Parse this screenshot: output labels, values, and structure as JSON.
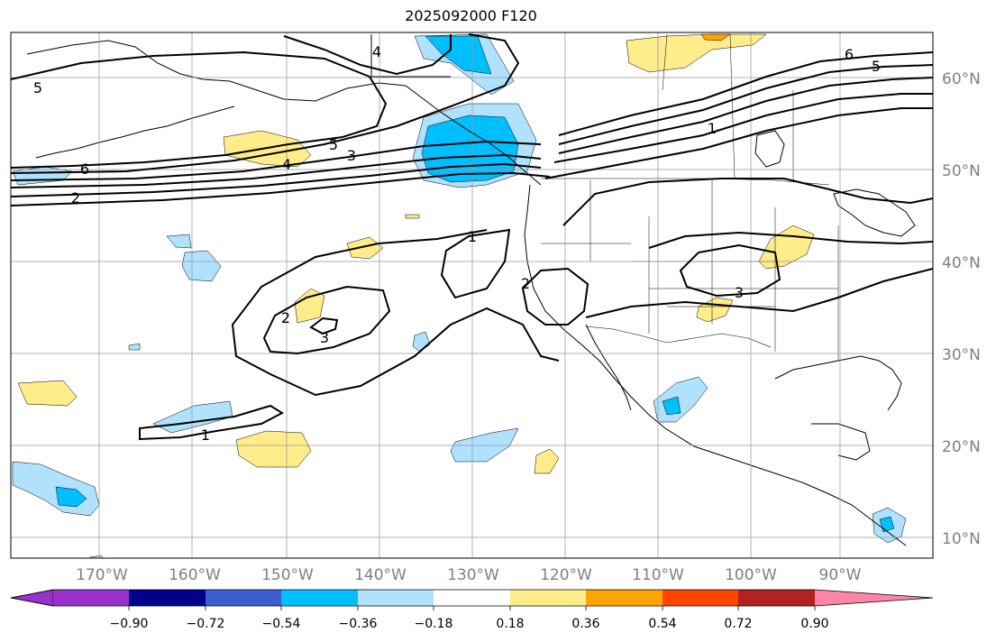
{
  "title": "2025092000 F120",
  "map": {
    "lon_labels": [
      "170°W",
      "160°W",
      "150°W",
      "140°W",
      "130°W",
      "120°W",
      "110°W",
      "100°W",
      "90°W"
    ],
    "lat_labels": [
      "60°N",
      "50°N",
      "40°N",
      "30°N",
      "20°N",
      "10°N"
    ],
    "contour_labels": [
      {
        "text": "5"
      },
      {
        "text": "6"
      },
      {
        "text": "2"
      },
      {
        "text": "4"
      },
      {
        "text": "5"
      },
      {
        "text": "3"
      },
      {
        "text": "4"
      },
      {
        "text": "6"
      },
      {
        "text": "5"
      },
      {
        "text": "1"
      },
      {
        "text": "1"
      },
      {
        "text": "2"
      },
      {
        "text": "3"
      },
      {
        "text": "2"
      },
      {
        "text": "3"
      },
      {
        "text": "1"
      }
    ]
  },
  "colorbar": {
    "tick_labels": [
      "−0.90",
      "−0.72",
      "−0.54",
      "−0.36",
      "−0.18",
      "0.18",
      "0.36",
      "0.54",
      "0.72",
      "0.90"
    ],
    "colors": [
      "#9932cc",
      "#00008b",
      "#3a5fcd",
      "#00bfff",
      "#b0e2ff",
      "#ffffff",
      "#ffec8b",
      "#ffa500",
      "#ff4500",
      "#b22222",
      "#ff85a8"
    ]
  },
  "colors": {
    "light_blue": "#b0e2ff",
    "blue": "#00bfff",
    "yellow": "#ffec8b",
    "orange": "#ffa500",
    "grid": "#999999",
    "label_gray": "#808080"
  }
}
